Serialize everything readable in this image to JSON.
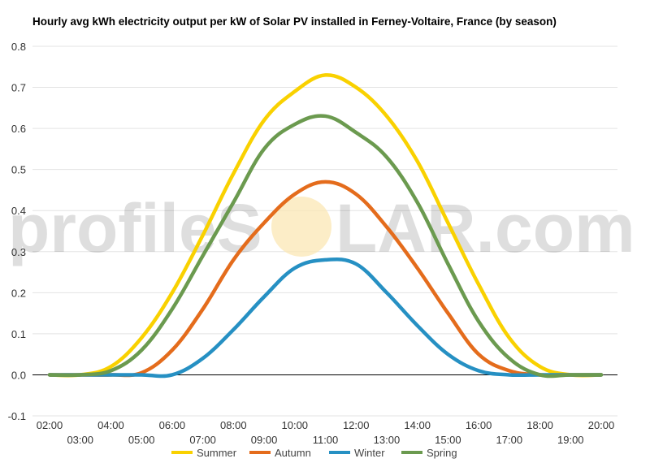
{
  "chart_data": {
    "type": "line",
    "title": "Hourly avg kWh electricity output per kW of Solar PV installed in Ferney-Voltaire, France (by season)",
    "xlabel": "",
    "ylabel": "",
    "ylim": [
      -0.1,
      0.8
    ],
    "yticks": [
      "-0.1",
      "0.0",
      "0.1",
      "0.2",
      "0.3",
      "0.4",
      "0.5",
      "0.6",
      "0.7",
      "0.8"
    ],
    "categories": [
      "02:00",
      "03:00",
      "04:00",
      "05:00",
      "06:00",
      "07:00",
      "08:00",
      "09:00",
      "10:00",
      "11:00",
      "12:00",
      "13:00",
      "14:00",
      "15:00",
      "16:00",
      "17:00",
      "18:00",
      "19:00",
      "20:00"
    ],
    "grid": true,
    "legend_position": "bottom",
    "series": [
      {
        "name": "Summer",
        "color": "#F9D100",
        "values": [
          0,
          0,
          0.02,
          0.09,
          0.2,
          0.34,
          0.49,
          0.62,
          0.69,
          0.73,
          0.7,
          0.63,
          0.52,
          0.37,
          0.22,
          0.09,
          0.02,
          0,
          0
        ]
      },
      {
        "name": "Autumn",
        "color": "#E46C1C",
        "values": [
          0,
          0,
          0,
          0.005,
          0.06,
          0.16,
          0.28,
          0.37,
          0.44,
          0.47,
          0.44,
          0.36,
          0.26,
          0.15,
          0.05,
          0.01,
          0,
          0,
          0
        ]
      },
      {
        "name": "Winter",
        "color": "#2690C3",
        "values": [
          0,
          0,
          0,
          0,
          0,
          0.04,
          0.11,
          0.19,
          0.26,
          0.28,
          0.27,
          0.2,
          0.12,
          0.05,
          0.01,
          0,
          0,
          0,
          0
        ]
      },
      {
        "name": "Spring",
        "color": "#6B9A4F",
        "values": [
          0,
          0,
          0.01,
          0.06,
          0.16,
          0.29,
          0.42,
          0.55,
          0.61,
          0.63,
          0.59,
          0.53,
          0.42,
          0.27,
          0.13,
          0.04,
          0,
          0,
          0
        ]
      }
    ]
  },
  "watermark": {
    "left": "profileS",
    "right": "LAR.com"
  },
  "colors": {
    "grid": "#E3E3E3",
    "zero_line": "#000000",
    "watermark_sun": "#FBE7B4"
  }
}
